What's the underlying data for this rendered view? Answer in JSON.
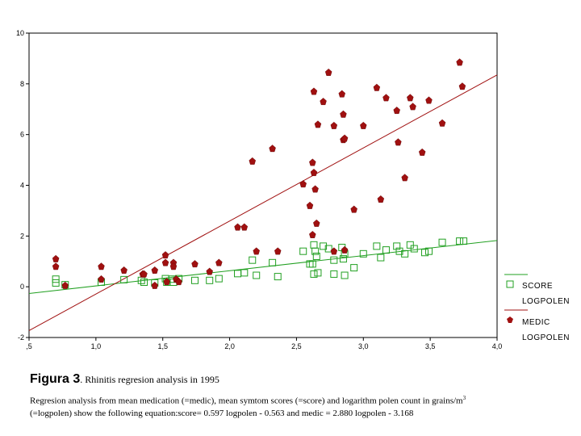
{
  "chart_data": {
    "type": "scatter",
    "xlim": [
      0.5,
      4.0
    ],
    "ylim": [
      -2,
      10
    ],
    "x_ticks": [
      ",5",
      "1,0",
      "1,5",
      "2,0",
      "2,5",
      "3,0",
      "3,5",
      "4,0"
    ],
    "y_ticks": [
      "-2",
      "0",
      "2",
      "4",
      "6",
      "8",
      "10"
    ],
    "grid": false,
    "legend_position": "right",
    "series": [
      {
        "name": "SCORE",
        "marker": "open-square",
        "color": "#22a022",
        "points": [
          [
            0.7,
            0.3
          ],
          [
            0.7,
            0.15
          ],
          [
            0.77,
            0.08
          ],
          [
            1.04,
            0.18
          ],
          [
            1.21,
            0.28
          ],
          [
            1.34,
            0.25
          ],
          [
            1.36,
            0.18
          ],
          [
            1.44,
            0.15
          ],
          [
            1.52,
            0.32
          ],
          [
            1.53,
            0.18
          ],
          [
            1.57,
            0.3
          ],
          [
            1.58,
            0.18
          ],
          [
            1.62,
            0.32
          ],
          [
            1.74,
            0.25
          ],
          [
            1.85,
            0.25
          ],
          [
            1.92,
            0.32
          ],
          [
            2.06,
            0.52
          ],
          [
            2.11,
            0.55
          ],
          [
            2.17,
            1.05
          ],
          [
            2.2,
            0.45
          ],
          [
            2.32,
            0.95
          ],
          [
            2.36,
            0.4
          ],
          [
            2.55,
            1.4
          ],
          [
            2.6,
            0.9
          ],
          [
            2.62,
            0.9
          ],
          [
            2.63,
            0.5
          ],
          [
            2.63,
            1.65
          ],
          [
            2.64,
            1.4
          ],
          [
            2.65,
            1.2
          ],
          [
            2.66,
            0.55
          ],
          [
            2.7,
            1.6
          ],
          [
            2.74,
            1.5
          ],
          [
            2.78,
            1.05
          ],
          [
            2.78,
            0.5
          ],
          [
            2.84,
            1.55
          ],
          [
            2.85,
            1.1
          ],
          [
            2.86,
            1.3
          ],
          [
            2.86,
            0.45
          ],
          [
            2.93,
            0.75
          ],
          [
            3.0,
            1.3
          ],
          [
            3.1,
            1.6
          ],
          [
            3.13,
            1.15
          ],
          [
            3.17,
            1.45
          ],
          [
            3.25,
            1.6
          ],
          [
            3.27,
            1.4
          ],
          [
            3.31,
            1.3
          ],
          [
            3.35,
            1.65
          ],
          [
            3.38,
            1.5
          ],
          [
            3.46,
            1.35
          ],
          [
            3.49,
            1.4
          ],
          [
            3.59,
            1.75
          ],
          [
            3.72,
            1.8
          ],
          [
            3.75,
            1.8
          ]
        ]
      },
      {
        "name": "MEDIC",
        "marker": "filled-diamond",
        "color": "#a01010",
        "points": [
          [
            0.7,
            1.1
          ],
          [
            0.7,
            0.8
          ],
          [
            0.77,
            0.05
          ],
          [
            1.04,
            0.8
          ],
          [
            1.04,
            0.3
          ],
          [
            1.21,
            0.65
          ],
          [
            1.35,
            0.5
          ],
          [
            1.36,
            0.5
          ],
          [
            1.44,
            0.05
          ],
          [
            1.44,
            0.65
          ],
          [
            1.52,
            1.25
          ],
          [
            1.52,
            0.95
          ],
          [
            1.53,
            0.2
          ],
          [
            1.58,
            0.95
          ],
          [
            1.58,
            0.8
          ],
          [
            1.6,
            0.3
          ],
          [
            1.62,
            0.2
          ],
          [
            1.74,
            0.9
          ],
          [
            1.85,
            0.6
          ],
          [
            1.92,
            0.95
          ],
          [
            2.06,
            2.35
          ],
          [
            2.11,
            2.35
          ],
          [
            2.17,
            4.95
          ],
          [
            2.2,
            1.4
          ],
          [
            2.32,
            5.45
          ],
          [
            2.36,
            1.4
          ],
          [
            2.55,
            4.05
          ],
          [
            2.6,
            3.2
          ],
          [
            2.62,
            4.9
          ],
          [
            2.62,
            2.05
          ],
          [
            2.63,
            4.5
          ],
          [
            2.63,
            7.7
          ],
          [
            2.64,
            3.85
          ],
          [
            2.65,
            2.5
          ],
          [
            2.66,
            6.4
          ],
          [
            2.7,
            7.3
          ],
          [
            2.74,
            8.45
          ],
          [
            2.78,
            6.35
          ],
          [
            2.78,
            1.4
          ],
          [
            2.84,
            7.6
          ],
          [
            2.85,
            6.8
          ],
          [
            2.85,
            5.8
          ],
          [
            2.86,
            5.85
          ],
          [
            2.86,
            1.45
          ],
          [
            2.93,
            3.05
          ],
          [
            3.0,
            6.35
          ],
          [
            3.1,
            7.85
          ],
          [
            3.13,
            3.45
          ],
          [
            3.17,
            7.45
          ],
          [
            3.25,
            6.95
          ],
          [
            3.26,
            5.7
          ],
          [
            3.31,
            4.3
          ],
          [
            3.35,
            7.45
          ],
          [
            3.37,
            7.1
          ],
          [
            3.44,
            5.3
          ],
          [
            3.49,
            7.35
          ],
          [
            3.59,
            6.45
          ],
          [
            3.72,
            8.85
          ],
          [
            3.74,
            7.9
          ]
        ]
      }
    ],
    "fit_lines": [
      {
        "name": "LOGPOLEN",
        "for": "SCORE",
        "slope": 0.597,
        "intercept": -0.563,
        "color": "#22a022"
      },
      {
        "name": "LOGPOLEN",
        "for": "MEDIC",
        "slope": 2.88,
        "intercept": -3.168,
        "color": "#a01010"
      }
    ]
  },
  "legend": {
    "score_label": "SCORE",
    "score_line_label": "LOGPOLEN",
    "medic_label": "MEDIC",
    "medic_line_label": "LOGPOLEN"
  },
  "caption": {
    "fig_label": "Figura 3",
    "fig_title": ". Rhinitis regresion analysis in 1995",
    "body_part1": "Regresion analysis from mean medication (=medic), mean symtom scores (=score) and logarithm polen count in grains/m",
    "body_sup": "3",
    "body_part2": "(=logpolen) show the following equation:score= 0.597 logpolen - 0.563 and medic = 2.880 logpolen - 3.168"
  }
}
